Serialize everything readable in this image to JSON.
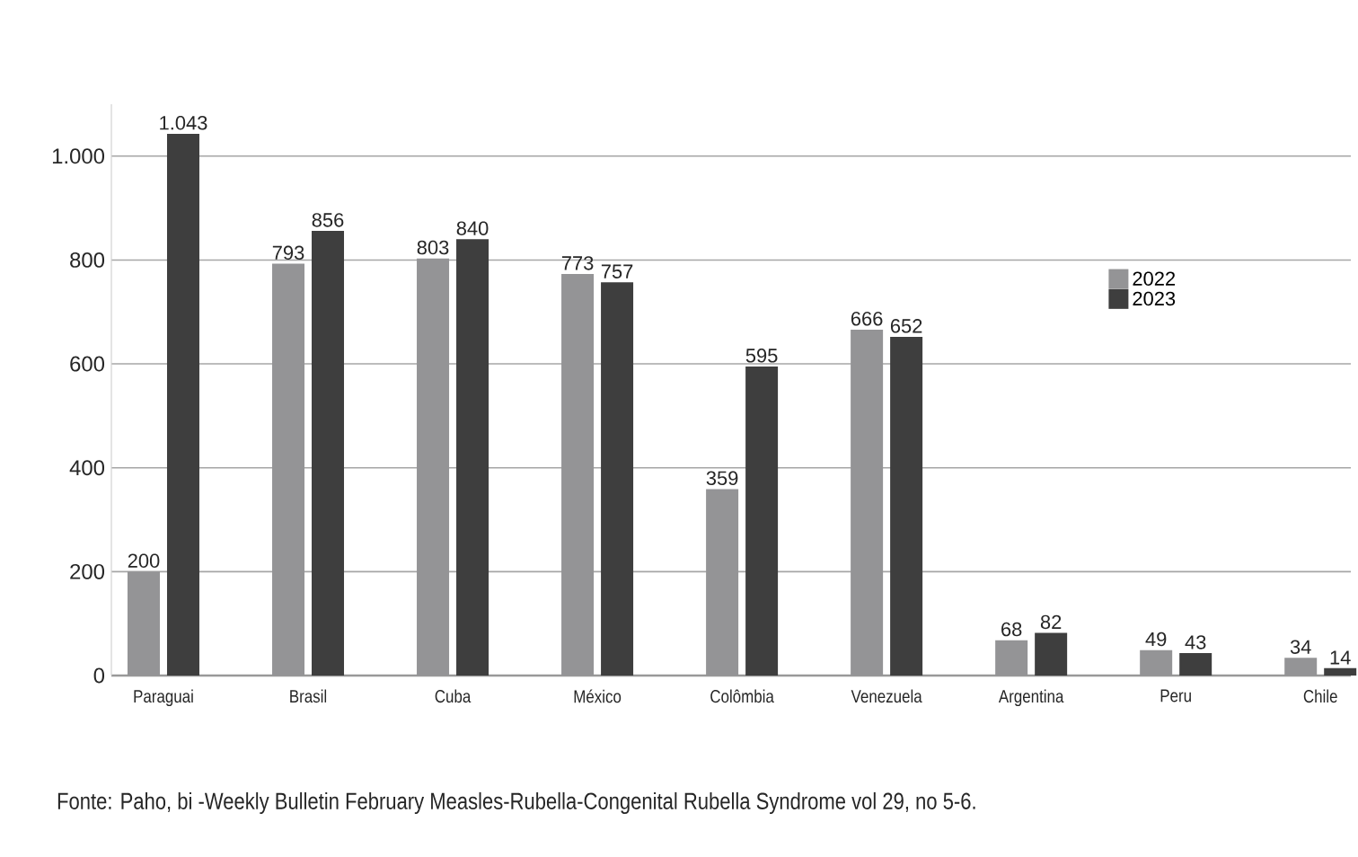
{
  "chart_data": {
    "type": "bar",
    "categories": [
      "Paraguai",
      "Brasil",
      "Cuba",
      "México",
      "Colômbia",
      "Venezuela",
      "Argentina",
      "Peru",
      "Chile"
    ],
    "series": [
      {
        "name": "2022",
        "color": "#949496",
        "values": [
          200,
          793,
          803,
          773,
          359,
          666,
          68,
          49,
          34
        ],
        "value_labels": [
          "200",
          "793",
          "803",
          "773",
          "359",
          "666",
          "68",
          "49",
          "34"
        ]
      },
      {
        "name": "2023",
        "color": "#3e3e3e",
        "values": [
          1043,
          856,
          840,
          757,
          595,
          652,
          82,
          43,
          14
        ],
        "value_labels": [
          "1.043",
          "856",
          "840",
          "757",
          "595",
          "652",
          "82",
          "43",
          "14"
        ]
      }
    ],
    "ylim": [
      0,
      1100
    ],
    "yticks": [
      0,
      200,
      400,
      600,
      800,
      {
        "value": 1000,
        "label": "1.000"
      }
    ],
    "grid": "y",
    "legend": "right",
    "annotations": [
      "Fonte: Paho, bi -Weekly Bulletin February Measles-Rubella-Congenital Rubella Syndrome vol 29, no 5-6."
    ]
  }
}
